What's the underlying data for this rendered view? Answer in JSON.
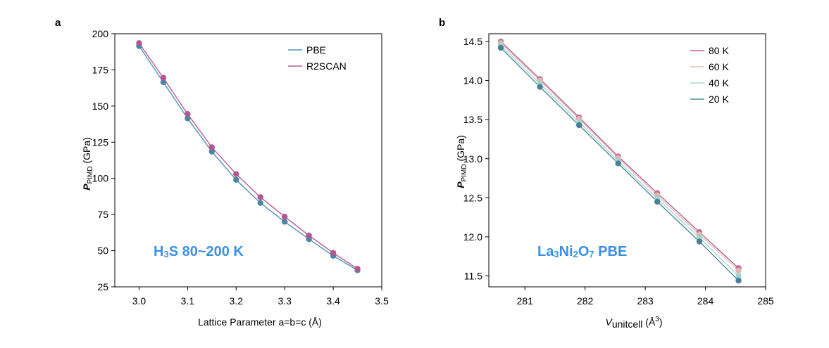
{
  "chart_data": [
    {
      "type": "line",
      "panel_label": "a",
      "xlabel": "Lattice Parameter a=b=c (Å)",
      "ylabel_main": "P",
      "ylabel_sub": "PIMD",
      "ylabel_unit": " (GPa)",
      "xlim": [
        2.95,
        3.5
      ],
      "ylim": [
        25,
        200
      ],
      "xticks": [
        3.0,
        3.1,
        3.2,
        3.3,
        3.4,
        3.5
      ],
      "xtick_labels": [
        "3.0",
        "3.1",
        "3.2",
        "3.3",
        "3.4",
        "3.5"
      ],
      "yticks": [
        25,
        50,
        75,
        100,
        125,
        150,
        175,
        200
      ],
      "ytick_labels": [
        "25",
        "50",
        "75",
        "100",
        "125",
        "150",
        "175",
        "200"
      ],
      "legend_position": "top-right",
      "annotation": {
        "pre": "H",
        "sub": "3",
        "post": "S  80~200 K",
        "color": "#3d8fe6"
      },
      "x": [
        3.0,
        3.05,
        3.1,
        3.15,
        3.2,
        3.25,
        3.3,
        3.35,
        3.4,
        3.45
      ],
      "series": [
        {
          "name": "PBE",
          "color": "#4f93b8",
          "marker_color": "#4a86a6",
          "values": [
            191.5,
            166.5,
            141.5,
            118.5,
            99.0,
            83.0,
            70.0,
            58.0,
            46.5,
            36.5
          ]
        },
        {
          "name": "R2SCAN",
          "color": "#b85a94",
          "marker_color": "#b5568f",
          "values": [
            193.5,
            169.5,
            144.5,
            121.5,
            103.0,
            87.0,
            73.5,
            60.5,
            48.5,
            37.5
          ]
        }
      ]
    },
    {
      "type": "line",
      "panel_label": "b",
      "xlabel_main": "V",
      "xlabel_sub": "unitcell",
      "xlabel_unit": " (Å",
      "xlabel_sup": "3",
      "xlabel_close": ")",
      "ylabel_main": "P",
      "ylabel_sub": "PIMD",
      "ylabel_unit": " (GPa)",
      "xlim": [
        280.4,
        285.0
      ],
      "ylim": [
        11.36,
        14.6
      ],
      "xticks": [
        281,
        282,
        283,
        284,
        285
      ],
      "xtick_labels": [
        "281",
        "282",
        "283",
        "284",
        "285"
      ],
      "yticks": [
        11.5,
        12.0,
        12.5,
        13.0,
        13.5,
        14.0,
        14.5
      ],
      "ytick_labels": [
        "11.5",
        "12.0",
        "12.5",
        "13.0",
        "13.5",
        "14.0",
        "14.5"
      ],
      "legend_position": "top-right",
      "annotation": {
        "pre": "La",
        "sub": "3",
        "mid": "Ni",
        "sub2": "2",
        "mid2": "O",
        "sub3": "7",
        "post": "  PBE",
        "color": "#3d8fe6"
      },
      "x": [
        280.6,
        281.25,
        281.9,
        282.55,
        283.2,
        283.9,
        284.55
      ],
      "series": [
        {
          "name": "80 K",
          "color": "#b5609a",
          "marker_color": "#c06aa2",
          "values": [
            14.5,
            14.02,
            13.53,
            13.03,
            12.56,
            12.06,
            11.6
          ]
        },
        {
          "name": "60 K",
          "color": "#e3c0b3",
          "marker_color": "#dfb7ab",
          "values": [
            14.48,
            14.0,
            13.51,
            13.01,
            12.53,
            12.03,
            11.57
          ]
        },
        {
          "name": "40 K",
          "color": "#a9d8d4",
          "marker_color": "#a4d4d0",
          "values": [
            14.45,
            13.96,
            13.47,
            12.97,
            12.49,
            11.99,
            11.5
          ]
        },
        {
          "name": "20 K",
          "color": "#4d8ba3",
          "marker_color": "#4c7f98",
          "values": [
            14.42,
            13.92,
            13.43,
            12.94,
            12.45,
            11.94,
            11.44
          ]
        }
      ]
    }
  ]
}
